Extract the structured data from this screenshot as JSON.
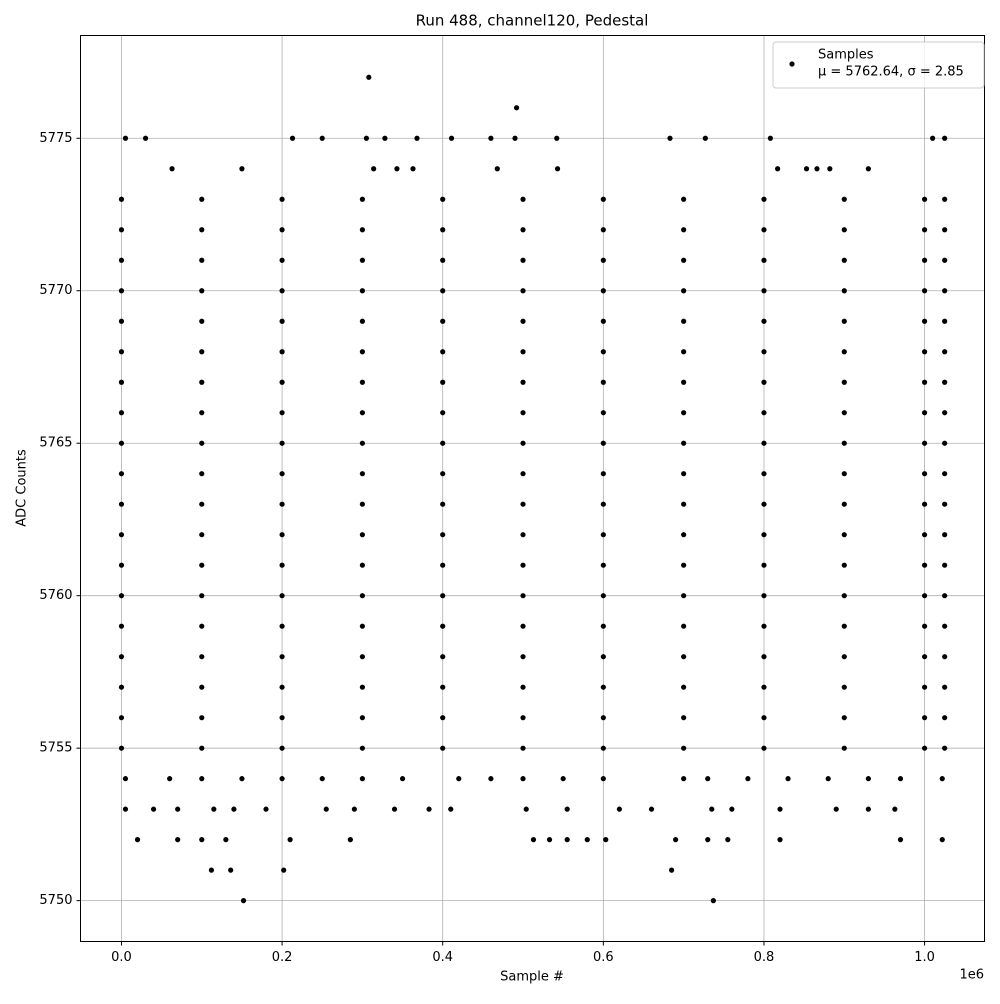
{
  "chart_data": {
    "type": "scatter",
    "title": "Run 488, channel120, Pedestal",
    "x_label": "Sample #",
    "y_label": "ADC Counts",
    "x_offset_label": "1e6",
    "xlim": [
      -0.051,
      1.0746
    ],
    "ylim": [
      5748.66,
      5778.37
    ],
    "xticks": [
      {
        "value": 0,
        "label": "0.0"
      },
      {
        "value": 0.2,
        "label": "0.2"
      },
      {
        "value": 0.4,
        "label": "0.4"
      },
      {
        "value": 0.6,
        "label": "0.6"
      },
      {
        "value": 0.8,
        "label": "0.8"
      },
      {
        "value": 1,
        "label": "1.0"
      }
    ],
    "yticks": [
      5750,
      5755,
      5760,
      5765,
      5770,
      5775
    ],
    "grid": true,
    "legend_position": "upper right",
    "series": [
      {
        "name": "Samples",
        "stats_label": "μ = 5762.64, σ = 2.85",
        "color": "#000000",
        "x": [
          0,
          0.1,
          0.2,
          0.3,
          0.4,
          0.5,
          0.6,
          0.7,
          0.8,
          0.9,
          1.0,
          1.025,
          0,
          0.1,
          0.2,
          0.3,
          0.4,
          0.5,
          0.6,
          0.7,
          0.8,
          0.9,
          1.0,
          1.025,
          0,
          0.1,
          0.2,
          0.3,
          0.4,
          0.5,
          0.6,
          0.7,
          0.8,
          0.9,
          1.0,
          1.025,
          0,
          0.1,
          0.2,
          0.3,
          0.4,
          0.5,
          0.6,
          0.7,
          0.8,
          0.9,
          1.0,
          1.025,
          0,
          0.1,
          0.2,
          0.3,
          0.4,
          0.5,
          0.6,
          0.7,
          0.8,
          0.9,
          1.0,
          1.025,
          0,
          0.1,
          0.2,
          0.3,
          0.4,
          0.5,
          0.6,
          0.7,
          0.8,
          0.9,
          1.0,
          1.025,
          0,
          0.1,
          0.2,
          0.3,
          0.4,
          0.5,
          0.6,
          0.7,
          0.8,
          0.9,
          1.0,
          1.025,
          0,
          0.1,
          0.2,
          0.3,
          0.4,
          0.5,
          0.6,
          0.7,
          0.8,
          0.9,
          1.0,
          1.025,
          0,
          0.1,
          0.2,
          0.3,
          0.4,
          0.5,
          0.6,
          0.7,
          0.8,
          0.9,
          1.0,
          1.025,
          0,
          0.1,
          0.2,
          0.3,
          0.4,
          0.5,
          0.6,
          0.7,
          0.8,
          0.9,
          1.0,
          1.025,
          0,
          0.1,
          0.2,
          0.3,
          0.4,
          0.5,
          0.6,
          0.7,
          0.8,
          0.9,
          1.0,
          1.025,
          0,
          0.1,
          0.2,
          0.3,
          0.4,
          0.5,
          0.6,
          0.7,
          0.8,
          0.9,
          1.0,
          1.025,
          0,
          0.1,
          0.2,
          0.3,
          0.4,
          0.5,
          0.6,
          0.7,
          0.8,
          0.9,
          1.0,
          1.025,
          0,
          0.1,
          0.2,
          0.3,
          0.4,
          0.5,
          0.6,
          0.7,
          0.8,
          0.9,
          1.0,
          1.025,
          0,
          0.1,
          0.2,
          0.3,
          0.4,
          0.5,
          0.6,
          0.7,
          0.8,
          0.9,
          1.0,
          1.025,
          0,
          0.1,
          0.2,
          0.3,
          0.4,
          0.5,
          0.6,
          0.7,
          0.8,
          0.9,
          1.0,
          1.025,
          0,
          0.1,
          0.2,
          0.3,
          0.4,
          0.5,
          0.6,
          0.7,
          0.8,
          0.9,
          1.0,
          1.025,
          0,
          0.1,
          0.2,
          0.3,
          0.4,
          0.5,
          0.6,
          0.7,
          0.8,
          0.9,
          1.0,
          1.025,
          0,
          0.1,
          0.2,
          0.3,
          0.4,
          0.5,
          0.6,
          0.7,
          0.8,
          0.9,
          1.0,
          1.025,
          0.005,
          0.03,
          0.213,
          0.25,
          0.305,
          0.328,
          0.368,
          0.411,
          0.46,
          0.49,
          0.542,
          0.683,
          0.727,
          0.808,
          1.01,
          1.025,
          0.063,
          0.15,
          0.314,
          0.343,
          0.363,
          0.468,
          0.543,
          0.817,
          0.853,
          0.866,
          0.882,
          0.93,
          0.308,
          0.492,
          0.005,
          0.06,
          0.1,
          0.15,
          0.2,
          0.25,
          0.3,
          0.35,
          0.42,
          0.46,
          0.5,
          0.55,
          0.6,
          0.7,
          0.73,
          0.78,
          0.83,
          0.88,
          0.93,
          0.97,
          1.022,
          0.005,
          0.04,
          0.07,
          0.115,
          0.14,
          0.18,
          0.255,
          0.29,
          0.34,
          0.383,
          0.41,
          0.504,
          0.555,
          0.62,
          0.66,
          0.735,
          0.76,
          0.82,
          0.89,
          0.93,
          0.963,
          0.02,
          0.07,
          0.1,
          0.13,
          0.21,
          0.285,
          0.513,
          0.533,
          0.555,
          0.58,
          0.603,
          0.69,
          0.73,
          0.755,
          0.82,
          0.97,
          1.022,
          0.112,
          0.136,
          0.202,
          0.685,
          0.152,
          0.737
        ],
        "values": [
          5755,
          5755,
          5755,
          5755,
          5755,
          5755,
          5755,
          5755,
          5755,
          5755,
          5755,
          5755,
          5756,
          5756,
          5756,
          5756,
          5756,
          5756,
          5756,
          5756,
          5756,
          5756,
          5756,
          5756,
          5757,
          5757,
          5757,
          5757,
          5757,
          5757,
          5757,
          5757,
          5757,
          5757,
          5757,
          5757,
          5758,
          5758,
          5758,
          5758,
          5758,
          5758,
          5758,
          5758,
          5758,
          5758,
          5758,
          5758,
          5759,
          5759,
          5759,
          5759,
          5759,
          5759,
          5759,
          5759,
          5759,
          5759,
          5759,
          5759,
          5760,
          5760,
          5760,
          5760,
          5760,
          5760,
          5760,
          5760,
          5760,
          5760,
          5760,
          5760,
          5761,
          5761,
          5761,
          5761,
          5761,
          5761,
          5761,
          5761,
          5761,
          5761,
          5761,
          5761,
          5762,
          5762,
          5762,
          5762,
          5762,
          5762,
          5762,
          5762,
          5762,
          5762,
          5762,
          5762,
          5763,
          5763,
          5763,
          5763,
          5763,
          5763,
          5763,
          5763,
          5763,
          5763,
          5763,
          5763,
          5764,
          5764,
          5764,
          5764,
          5764,
          5764,
          5764,
          5764,
          5764,
          5764,
          5764,
          5764,
          5765,
          5765,
          5765,
          5765,
          5765,
          5765,
          5765,
          5765,
          5765,
          5765,
          5765,
          5765,
          5766,
          5766,
          5766,
          5766,
          5766,
          5766,
          5766,
          5766,
          5766,
          5766,
          5766,
          5766,
          5767,
          5767,
          5767,
          5767,
          5767,
          5767,
          5767,
          5767,
          5767,
          5767,
          5767,
          5767,
          5768,
          5768,
          5768,
          5768,
          5768,
          5768,
          5768,
          5768,
          5768,
          5768,
          5768,
          5768,
          5769,
          5769,
          5769,
          5769,
          5769,
          5769,
          5769,
          5769,
          5769,
          5769,
          5769,
          5769,
          5770,
          5770,
          5770,
          5770,
          5770,
          5770,
          5770,
          5770,
          5770,
          5770,
          5770,
          5770,
          5771,
          5771,
          5771,
          5771,
          5771,
          5771,
          5771,
          5771,
          5771,
          5771,
          5771,
          5771,
          5772,
          5772,
          5772,
          5772,
          5772,
          5772,
          5772,
          5772,
          5772,
          5772,
          5772,
          5772,
          5773,
          5773,
          5773,
          5773,
          5773,
          5773,
          5773,
          5773,
          5773,
          5773,
          5773,
          5773,
          5775,
          5775,
          5775,
          5775,
          5775,
          5775,
          5775,
          5775,
          5775,
          5775,
          5775,
          5775,
          5775,
          5775,
          5775,
          5775,
          5774,
          5774,
          5774,
          5774,
          5774,
          5774,
          5774,
          5774,
          5774,
          5774,
          5774,
          5774,
          5777,
          5776,
          5754,
          5754,
          5754,
          5754,
          5754,
          5754,
          5754,
          5754,
          5754,
          5754,
          5754,
          5754,
          5754,
          5754,
          5754,
          5754,
          5754,
          5754,
          5754,
          5754,
          5754,
          5753,
          5753,
          5753,
          5753,
          5753,
          5753,
          5753,
          5753,
          5753,
          5753,
          5753,
          5753,
          5753,
          5753,
          5753,
          5753,
          5753,
          5753,
          5753,
          5753,
          5753,
          5752,
          5752,
          5752,
          5752,
          5752,
          5752,
          5752,
          5752,
          5752,
          5752,
          5752,
          5752,
          5752,
          5752,
          5752,
          5752,
          5752,
          5751,
          5751,
          5751,
          5751,
          5750,
          5750
        ]
      }
    ]
  }
}
